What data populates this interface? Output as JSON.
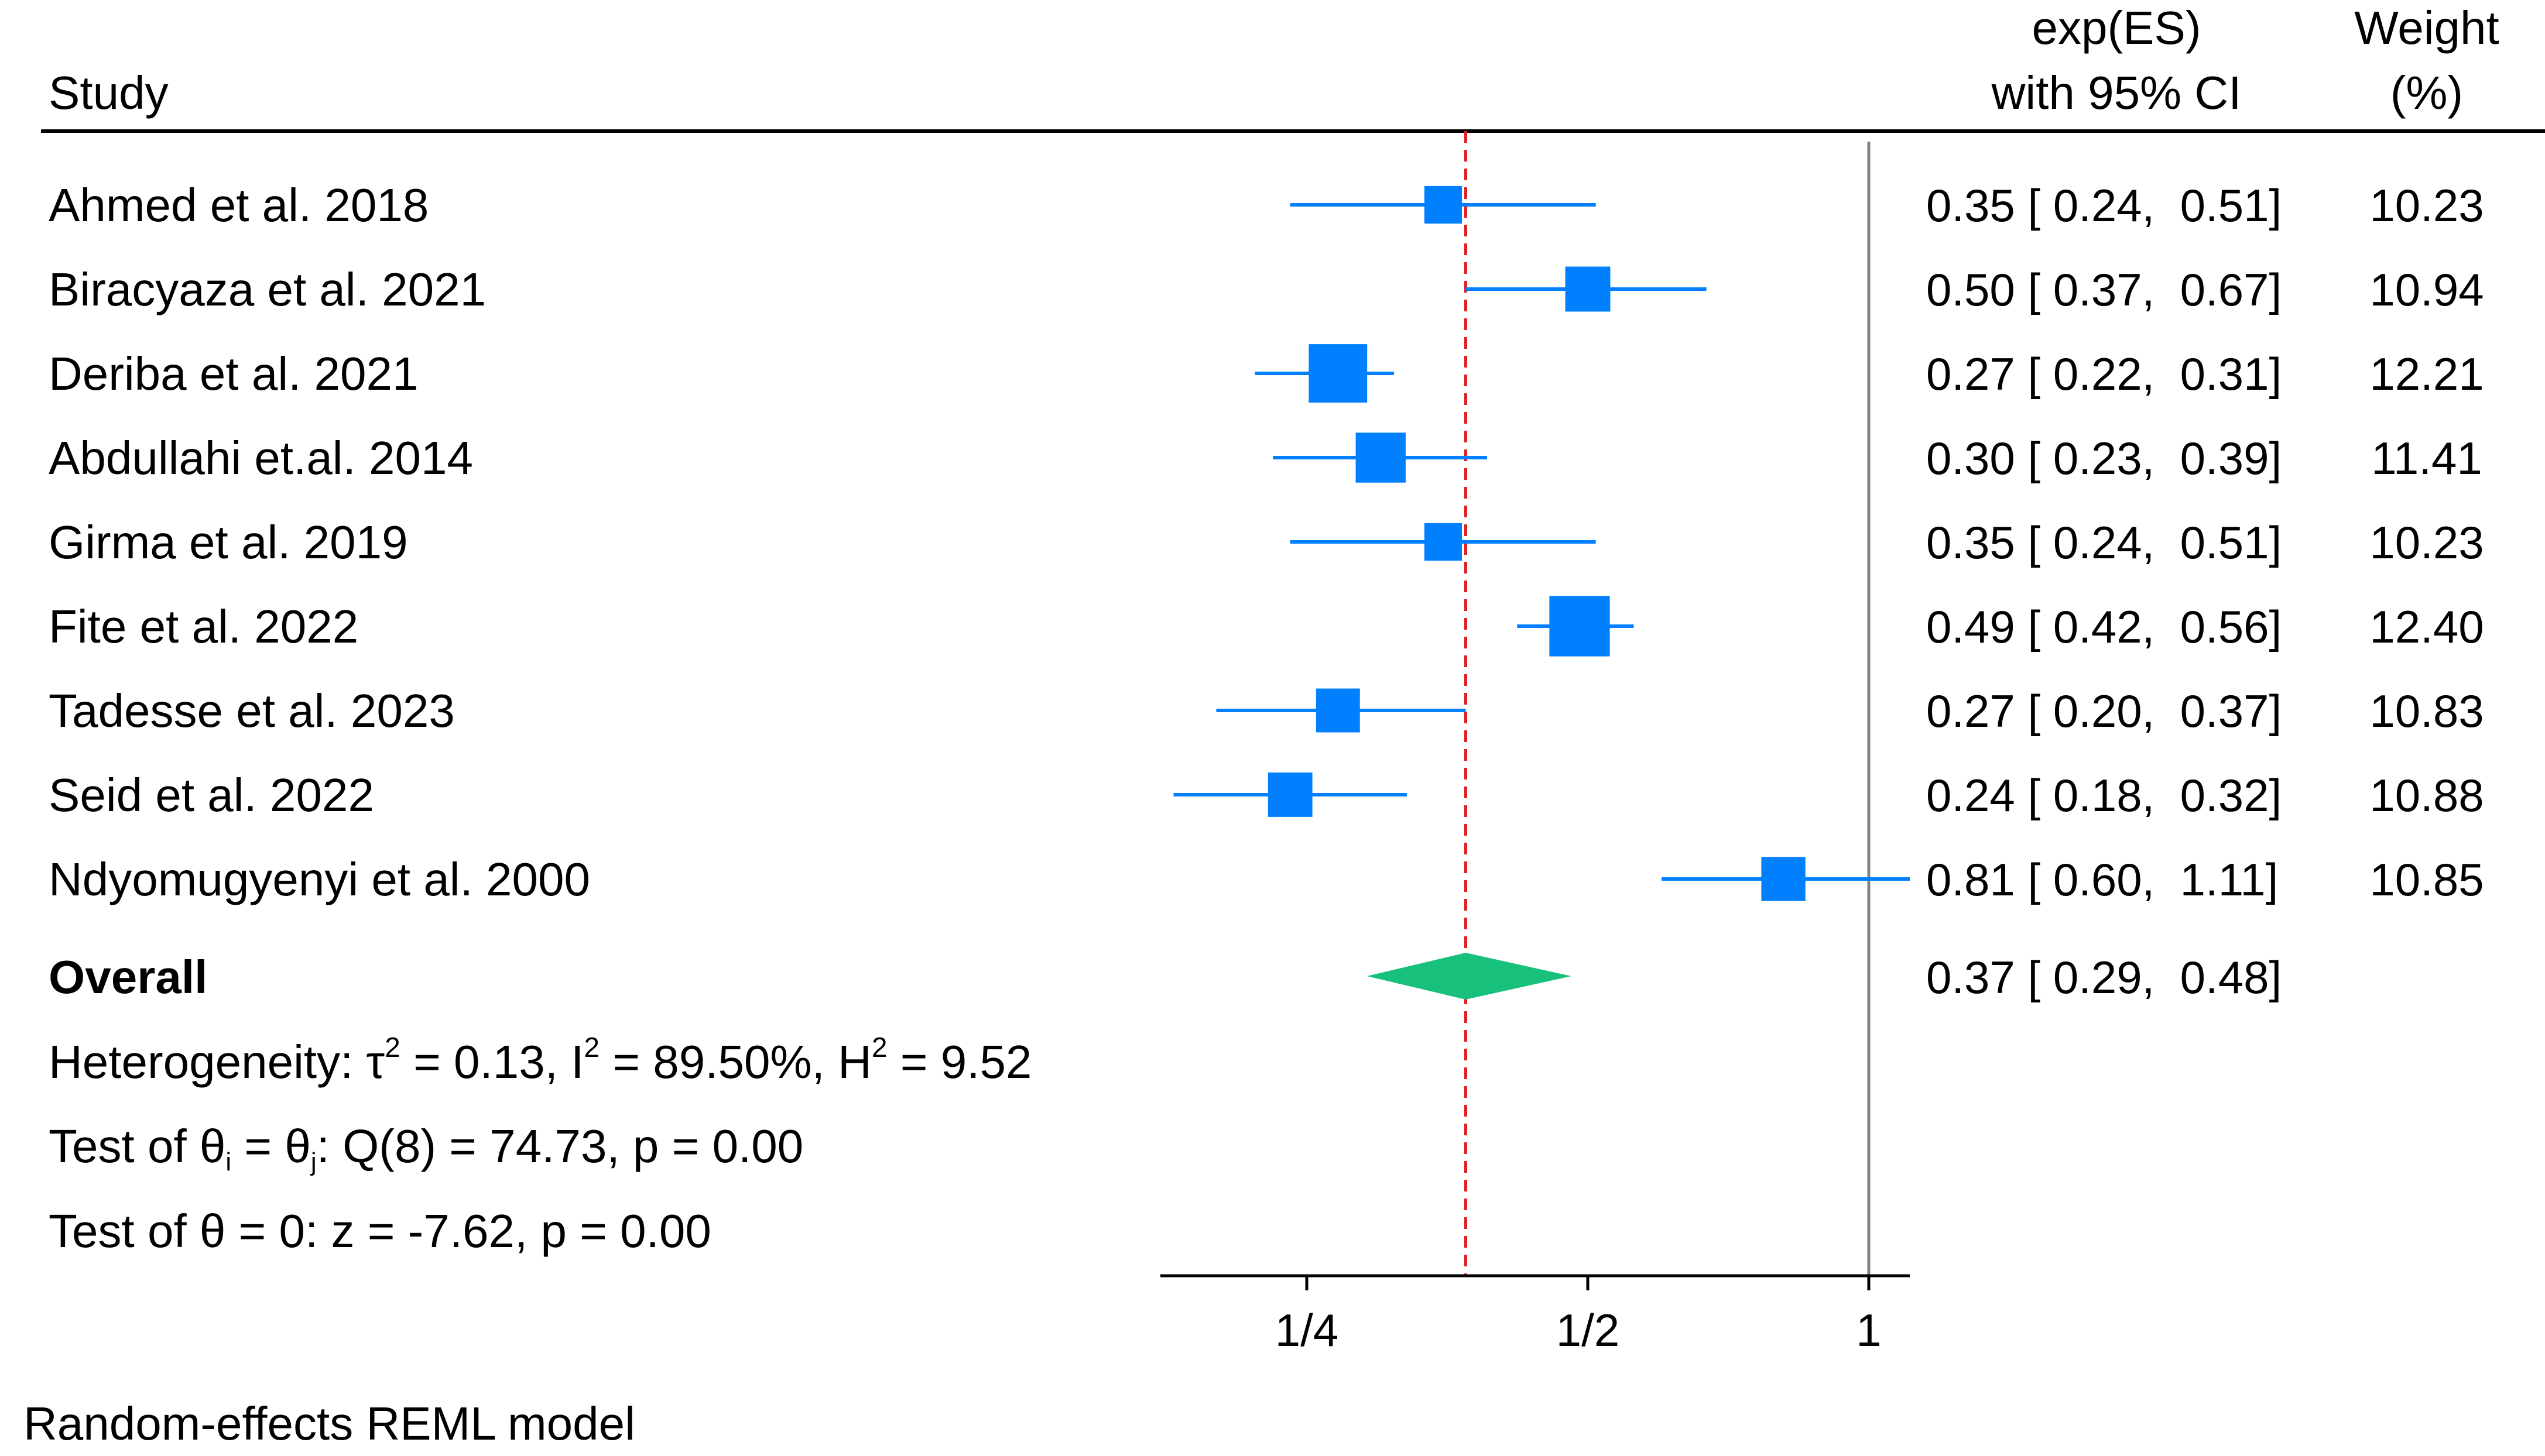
{
  "chart_data": {
    "type": "forest",
    "scale": "log2",
    "header": {
      "study": "Study",
      "es_line1": "exp(ES)",
      "es_line2": "with 95% CI",
      "weight_line1": "Weight",
      "weight_line2": "(%)"
    },
    "studies": [
      {
        "name": "Ahmed et al. 2018",
        "es": 0.35,
        "lo": 0.24,
        "hi": 0.51,
        "weight": 10.23,
        "es_text": "0.35 [ 0.24,  0.51]",
        "weight_text": "10.23"
      },
      {
        "name": "Biracyaza et al. 2021",
        "es": 0.5,
        "lo": 0.37,
        "hi": 0.67,
        "weight": 10.94,
        "es_text": "0.50 [ 0.37,  0.67]",
        "weight_text": "10.94"
      },
      {
        "name": "Deriba et al. 2021",
        "es": 0.27,
        "lo": 0.22,
        "hi": 0.31,
        "weight": 12.21,
        "es_text": "0.27 [ 0.22,  0.31]",
        "weight_text": "12.21"
      },
      {
        "name": "Abdullahi et.al. 2014",
        "es": 0.3,
        "lo": 0.23,
        "hi": 0.39,
        "weight": 11.41,
        "es_text": "0.30 [ 0.23,  0.39]",
        "weight_text": "11.41"
      },
      {
        "name": "Girma et al. 2019",
        "es": 0.35,
        "lo": 0.24,
        "hi": 0.51,
        "weight": 10.23,
        "es_text": "0.35 [ 0.24,  0.51]",
        "weight_text": "10.23"
      },
      {
        "name": "Fite et al. 2022",
        "es": 0.49,
        "lo": 0.42,
        "hi": 0.56,
        "weight": 12.4,
        "es_text": "0.49 [ 0.42,  0.56]",
        "weight_text": "12.40"
      },
      {
        "name": "Tadesse et al. 2023",
        "es": 0.27,
        "lo": 0.2,
        "hi": 0.37,
        "weight": 10.83,
        "es_text": "0.27 [ 0.20,  0.37]",
        "weight_text": "10.83"
      },
      {
        "name": "Seid et al. 2022",
        "es": 0.24,
        "lo": 0.18,
        "hi": 0.32,
        "weight": 10.88,
        "es_text": "0.24 [ 0.18,  0.32]",
        "weight_text": "10.88"
      },
      {
        "name": "Ndyomugyenyi et al. 2000",
        "es": 0.81,
        "lo": 0.6,
        "hi": 1.11,
        "weight": 10.85,
        "es_text": "0.81 [ 0.60,  1.11]",
        "weight_text": "10.85"
      }
    ],
    "overall": {
      "label": "Overall",
      "es": 0.37,
      "lo": 0.29,
      "hi": 0.48,
      "es_text": "0.37 [ 0.29,  0.48]"
    },
    "heterogeneity": {
      "prefix": "Heterogeneity: τ",
      "tau2_sup": "2",
      "tau2_val": " = 0.13, I",
      "i2_sup": "2",
      "i2_val": " = 89.50%, H",
      "h2_sup": "2",
      "h2_val": " = 9.52"
    },
    "test_between": {
      "p1": "Test of θ",
      "sub_i": "i",
      "p2": " = θ",
      "sub_j": "j",
      "p3": ": Q(8) = 74.73, p = 0.00"
    },
    "test_overall": "Test of θ = 0: z = -7.62, p = 0.00",
    "x_ticks": [
      {
        "value": 0.25,
        "label": "1/4"
      },
      {
        "value": 0.5,
        "label": "1/2"
      },
      {
        "value": 1,
        "label": "1"
      }
    ],
    "x_range": [
      0.18,
      1.11
    ],
    "null_line": 1,
    "overall_line": 0.37,
    "footnote": "Random-effects REML model",
    "colors": {
      "marker": "#0080ff",
      "ci": "#0080ff",
      "diamond": "#17c17b",
      "overall_line": "#e02020",
      "null_line": "#808080"
    }
  }
}
